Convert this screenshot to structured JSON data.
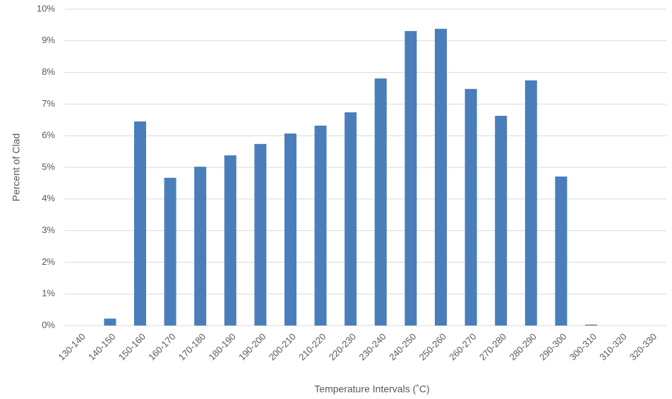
{
  "chart_data": {
    "type": "bar",
    "x_label": "Temperature Intervals (˚C)",
    "y_label": "Percent of Clad",
    "categories": [
      "130-140",
      "140-150",
      "150-160",
      "160-170",
      "170-180",
      "180-190",
      "190-200",
      "200-210",
      "210-220",
      "220-230",
      "230-240",
      "240-250",
      "250-260",
      "260-270",
      "270-280",
      "280-290",
      "290-300",
      "300-310",
      "310-320",
      "320-330"
    ],
    "values": [
      0,
      0.22,
      6.45,
      4.67,
      5.02,
      5.38,
      5.74,
      6.07,
      6.32,
      6.74,
      7.81,
      9.31,
      9.38,
      7.48,
      6.63,
      7.75,
      4.71,
      0.03,
      0,
      0
    ],
    "color": "#4a7ebb",
    "ylim": [
      0,
      10
    ],
    "yticks": [
      {
        "value": 0,
        "label": "0%"
      },
      {
        "value": 1,
        "label": "1%"
      },
      {
        "value": 2,
        "label": "2%"
      },
      {
        "value": 3,
        "label": "3%"
      },
      {
        "value": 4,
        "label": "4%"
      },
      {
        "value": 5,
        "label": "5%"
      },
      {
        "value": 6,
        "label": "6%"
      },
      {
        "value": 7,
        "label": "7%"
      },
      {
        "value": 8,
        "label": "8%"
      },
      {
        "value": 9,
        "label": "9%"
      },
      {
        "value": 10,
        "label": "10%"
      }
    ],
    "grid": true
  }
}
